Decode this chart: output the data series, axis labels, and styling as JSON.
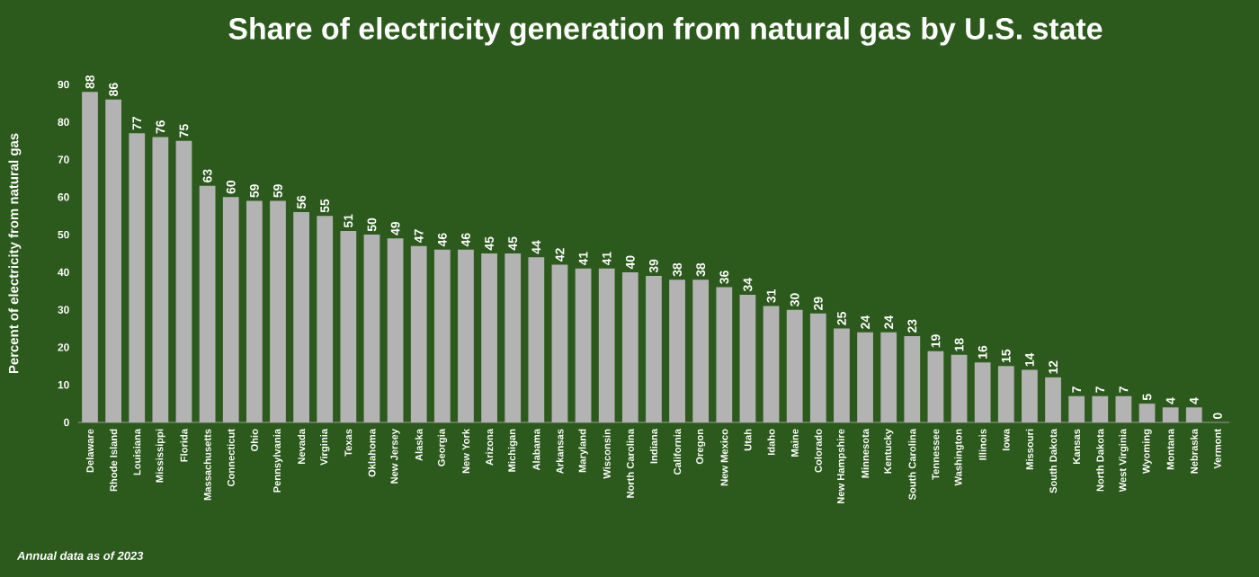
{
  "chart_data": {
    "type": "bar",
    "title": "Share of electricity generation from natural gas by U.S. state",
    "ylabel": "Percent of electricity from natural gas",
    "categories": [
      "Delaware",
      "Rhode Island",
      "Louisiana",
      "Mississippi",
      "Florida",
      "Massachusetts",
      "Connecticut",
      "Ohio",
      "Pennsylvania",
      "Nevada",
      "Virginia",
      "Texas",
      "Oklahoma",
      "New Jersey",
      "Alaska",
      "Georgia",
      "New York",
      "Arizona",
      "Michigan",
      "Alabama",
      "Arkansas",
      "Maryland",
      "Wisconsin",
      "North Carolina",
      "Indiana",
      "California",
      "Oregon",
      "New Mexico",
      "Utah",
      "Idaho",
      "Maine",
      "Colorado",
      "New Hampshire",
      "Minnesota",
      "Kentucky",
      "South Carolina",
      "Tennessee",
      "Washington",
      "Illinois",
      "Iowa",
      "Missouri",
      "South Dakota",
      "Kansas",
      "North Dakota",
      "West Virginia",
      "Wyoming",
      "Montana",
      "Nebraska",
      "Vermont"
    ],
    "values": [
      88,
      86,
      77,
      76,
      75,
      63,
      60,
      59,
      59,
      56,
      55,
      51,
      50,
      49,
      47,
      46,
      46,
      45,
      45,
      44,
      42,
      41,
      41,
      40,
      39,
      38,
      38,
      36,
      34,
      31,
      30,
      29,
      25,
      24,
      24,
      23,
      19,
      18,
      16,
      15,
      14,
      12,
      7,
      7,
      7,
      5,
      4,
      4,
      0
    ],
    "color": "#b3b3b3",
    "ylim": [
      0,
      90
    ],
    "yticks": [
      0,
      10,
      20,
      30,
      40,
      50,
      60,
      70,
      80,
      90
    ],
    "data_labels": true,
    "annotations": [
      "Annual data as of 2023"
    ]
  }
}
